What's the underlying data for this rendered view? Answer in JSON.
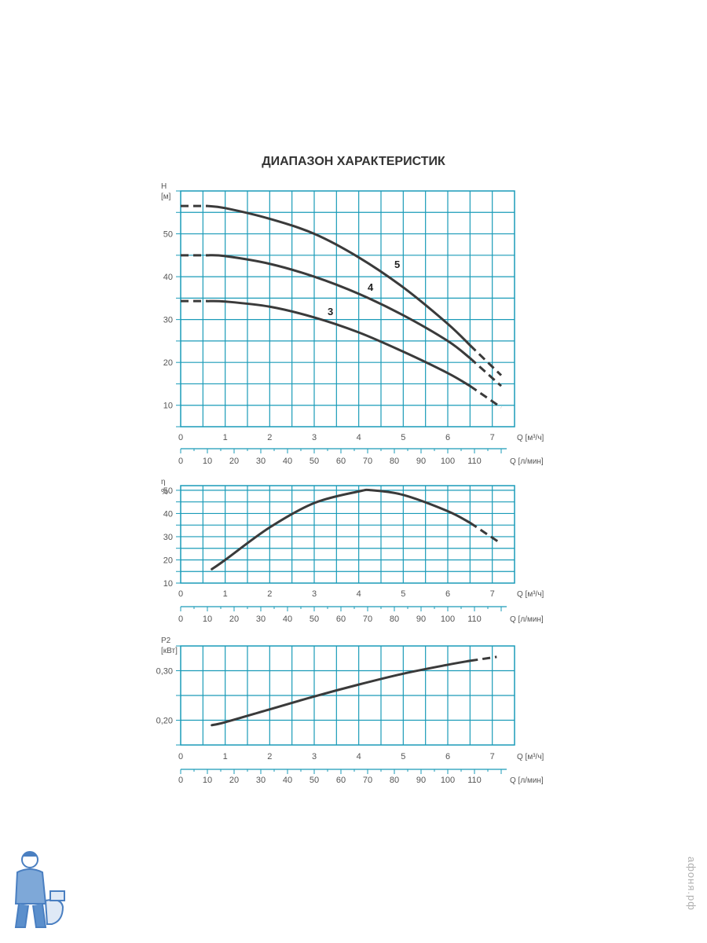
{
  "title": "ДИАПАЗОН ХАРАКТЕРИСТИК",
  "watermark": "афоня.рф",
  "colors": {
    "grid": "#1a9bb8",
    "curve": "#3a3a3a",
    "text": "#555555",
    "logo": "#4a7fc1"
  },
  "chart_data": [
    {
      "type": "line",
      "ylabel": "H [м]",
      "xlabel": "Q [м³/ч]",
      "secondary_xlabel": "Q [л/мин]",
      "xlim": [
        0,
        7.5
      ],
      "ylim": [
        5,
        60
      ],
      "xticks": [
        "0",
        "1",
        "2",
        "3",
        "4",
        "5",
        "6",
        "7"
      ],
      "secondary_xticks": [
        "0",
        "10",
        "20",
        "30",
        "40",
        "50",
        "60",
        "70",
        "80",
        "90",
        "100",
        "110"
      ],
      "yticks": [
        "10",
        "20",
        "30",
        "40",
        "50"
      ],
      "grid": true,
      "series": [
        {
          "name": "5",
          "x": [
            0.6,
            1,
            2,
            3,
            4,
            5,
            6,
            6.5
          ],
          "y": [
            56.5,
            56,
            53.5,
            50,
            44.5,
            37.5,
            29,
            24
          ],
          "dashed_x": [
            0,
            0.6
          ],
          "dashed_y": [
            56.5,
            56.5
          ],
          "dashed_end_x": [
            6.5,
            7.2
          ],
          "dashed_end_y": [
            24,
            17
          ]
        },
        {
          "name": "4",
          "x": [
            0.6,
            1,
            2,
            3,
            4,
            5,
            6,
            6.5
          ],
          "y": [
            45,
            44.8,
            43,
            40,
            36,
            31,
            25,
            21
          ],
          "dashed_x": [
            0,
            0.6
          ],
          "dashed_y": [
            45,
            45
          ],
          "dashed_end_x": [
            6.5,
            7.2
          ],
          "dashed_end_y": [
            21,
            14.5
          ]
        },
        {
          "name": "3",
          "x": [
            0.6,
            1,
            2,
            3,
            4,
            5,
            6,
            6.5
          ],
          "y": [
            34.3,
            34.2,
            33,
            30.5,
            27,
            22.5,
            17.5,
            14.5
          ],
          "dashed_x": [
            0,
            0.6
          ],
          "dashed_y": [
            34.3,
            34.3
          ],
          "dashed_end_x": [
            6.5,
            7.2
          ],
          "dashed_end_y": [
            14.5,
            9.5
          ]
        }
      ]
    },
    {
      "type": "line",
      "ylabel": "η %",
      "xlabel": "Q [м³/ч]",
      "secondary_xlabel": "Q [л/мин]",
      "xlim": [
        0,
        7.5
      ],
      "ylim": [
        10,
        52
      ],
      "xticks": [
        "0",
        "1",
        "2",
        "3",
        "4",
        "5",
        "6",
        "7"
      ],
      "secondary_xticks": [
        "0",
        "10",
        "20",
        "30",
        "40",
        "50",
        "60",
        "70",
        "80",
        "90",
        "100",
        "110"
      ],
      "yticks": [
        "10",
        "20",
        "30",
        "40",
        "50"
      ],
      "grid": true,
      "series": [
        {
          "name": "",
          "x": [
            0.7,
            1,
            2,
            3,
            4,
            4.3,
            5,
            6,
            6.5
          ],
          "y": [
            16,
            20,
            34,
            44.5,
            49.5,
            50,
            48,
            41,
            36
          ],
          "dashed_end_x": [
            6.5,
            7.2
          ],
          "dashed_end_y": [
            36,
            27
          ]
        }
      ]
    },
    {
      "type": "line",
      "ylabel": "P2 [кВт]",
      "xlabel": "Q [м³/ч]",
      "secondary_xlabel": "Q [л/мин]",
      "xlim": [
        0,
        7.5
      ],
      "ylim": [
        0.15,
        0.35
      ],
      "xticks": [
        "0",
        "1",
        "2",
        "3",
        "4",
        "5",
        "6",
        "7"
      ],
      "secondary_xticks": [
        "0",
        "10",
        "20",
        "30",
        "40",
        "50",
        "60",
        "70",
        "80",
        "90",
        "100",
        "110"
      ],
      "yticks": [
        "0,20",
        "0,30"
      ],
      "grid": true,
      "series": [
        {
          "name": "",
          "x": [
            0.7,
            1,
            2,
            3,
            4,
            5,
            6,
            6.5
          ],
          "y": [
            0.19,
            0.196,
            0.222,
            0.248,
            0.272,
            0.294,
            0.312,
            0.32
          ],
          "dashed_end_x": [
            6.5,
            7.1
          ],
          "dashed_end_y": [
            0.32,
            0.328
          ]
        }
      ]
    }
  ]
}
